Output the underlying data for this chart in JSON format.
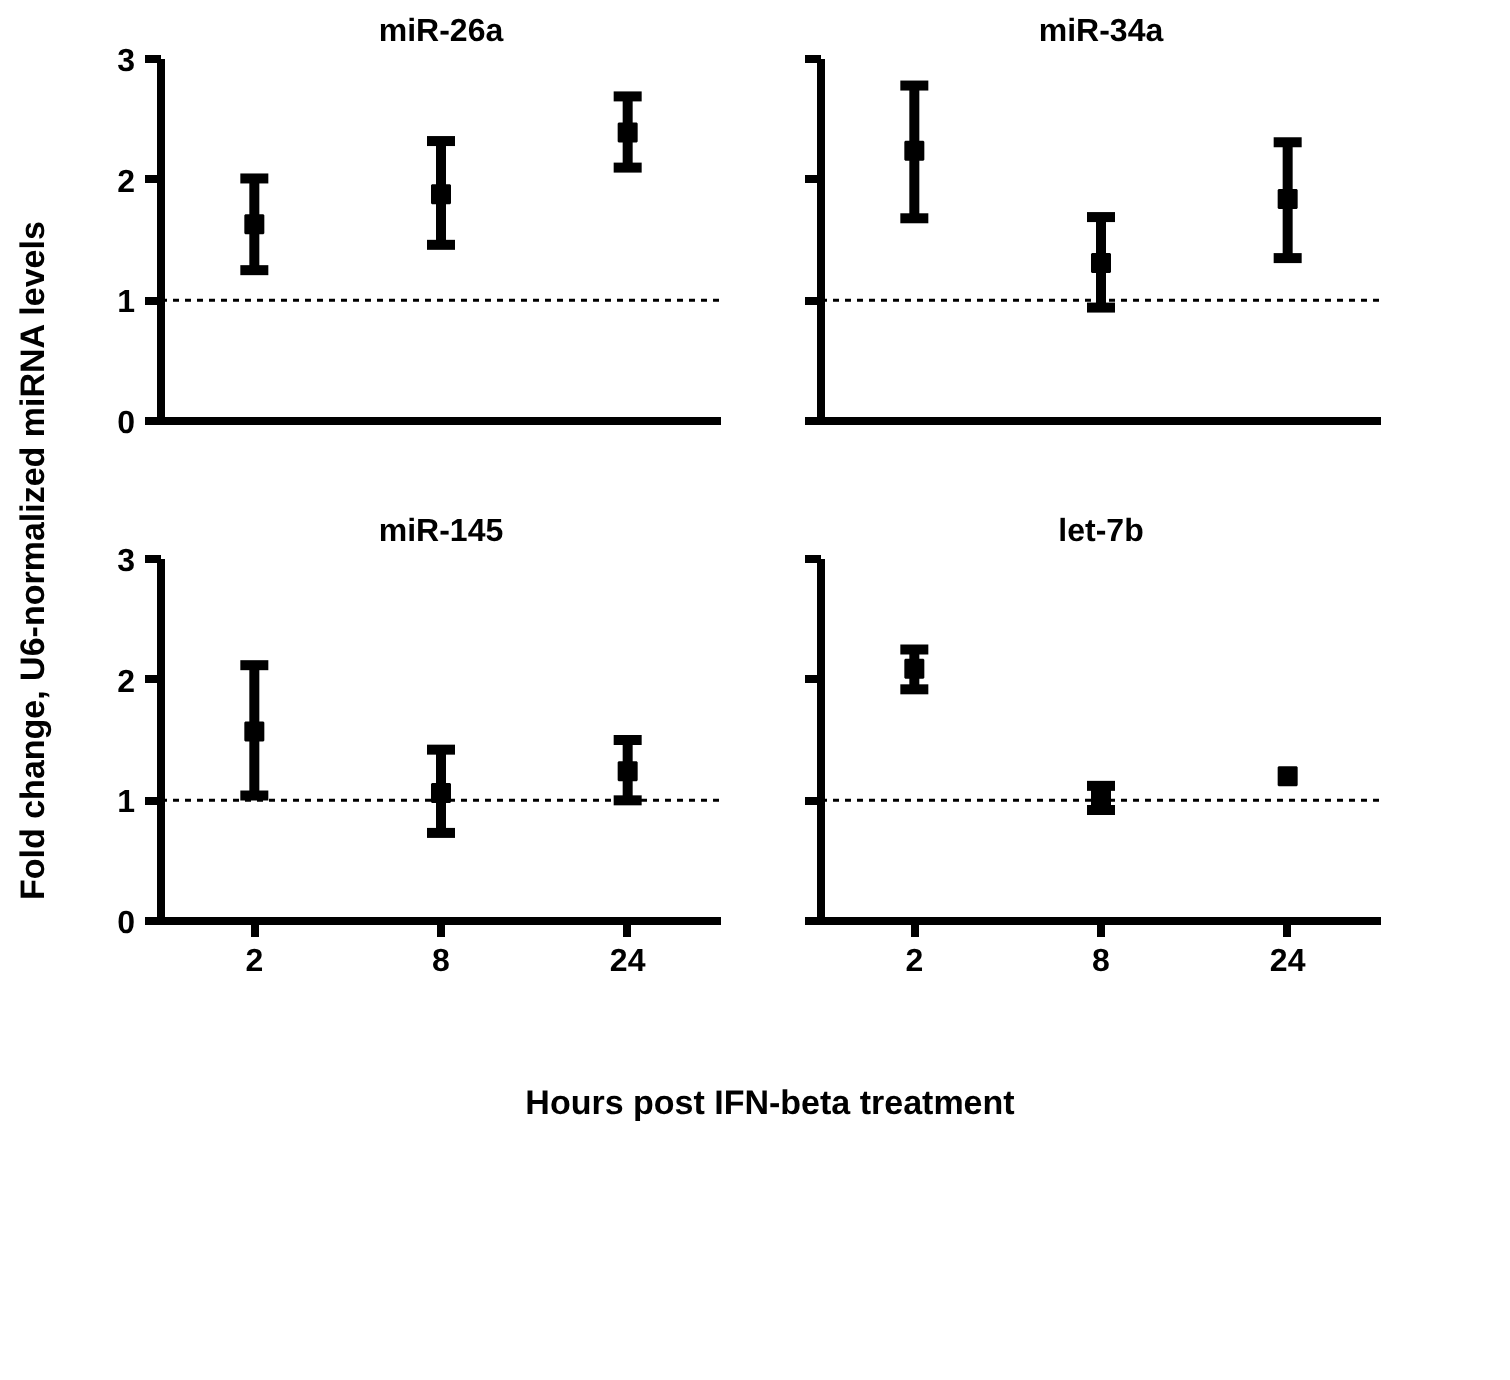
{
  "chart_data": [
    {
      "type": "scatter",
      "title": "miR-26a",
      "ylabel": "Fold change, U6-normalized miRNA levels",
      "categories": [
        "2",
        "8",
        "24"
      ],
      "ylim": [
        0,
        3
      ],
      "yticks": [
        0,
        1,
        2,
        3
      ],
      "marker": "square",
      "tick_labels": "y",
      "grid": false,
      "series": [
        {
          "color": "#000000",
          "values": [
            1.63,
            1.88,
            2.39
          ],
          "errors": [
            [
              1.25,
              2.01
            ],
            [
              1.46,
              2.32
            ],
            [
              2.1,
              2.69
            ]
          ]
        }
      ],
      "ref_lines": [
        {
          "axis": "y",
          "value": 1,
          "line_style": "dotted",
          "color": "#000000"
        }
      ]
    },
    {
      "type": "scatter",
      "title": "miR-34a",
      "categories": [
        "2",
        "8",
        "24"
      ],
      "ylim": [
        0,
        3
      ],
      "yticks": [
        0,
        1,
        2,
        3
      ],
      "marker": "square",
      "tick_labels": false,
      "grid": false,
      "series": [
        {
          "color": "#000000",
          "values": [
            2.24,
            1.31,
            1.84
          ],
          "errors": [
            [
              1.68,
              2.78
            ],
            [
              0.94,
              1.69
            ],
            [
              1.35,
              2.31
            ]
          ]
        }
      ],
      "ref_lines": [
        {
          "axis": "y",
          "value": 1,
          "line_style": "dotted",
          "color": "#000000"
        }
      ]
    },
    {
      "type": "scatter",
      "title": "miR-145",
      "xlabel": "Hours post IFN-beta treatment",
      "categories": [
        "2",
        "8",
        "24"
      ],
      "ylim": [
        0,
        3
      ],
      "yticks": [
        0,
        1,
        2,
        3
      ],
      "marker": "square",
      "grid": false,
      "series": [
        {
          "color": "#000000",
          "values": [
            1.57,
            1.06,
            1.24
          ],
          "errors": [
            [
              1.04,
              2.12
            ],
            [
              0.73,
              1.42
            ],
            [
              1.0,
              1.5
            ]
          ]
        }
      ],
      "ref_lines": [
        {
          "axis": "y",
          "value": 1,
          "line_style": "dotted",
          "color": "#000000"
        }
      ]
    },
    {
      "type": "scatter",
      "title": "let-7b",
      "categories": [
        "2",
        "8",
        "24"
      ],
      "ylim": [
        0,
        3
      ],
      "yticks": [
        0,
        1,
        2,
        3
      ],
      "marker": "square",
      "tick_labels": "x",
      "grid": false,
      "series": [
        {
          "color": "#000000",
          "values": [
            2.09,
            1.01,
            1.2
          ],
          "errors": [
            [
              1.92,
              2.25
            ],
            [
              0.92,
              1.12
            ],
            null
          ]
        }
      ],
      "ref_lines": [
        {
          "axis": "y",
          "value": 1,
          "line_style": "dotted",
          "color": "#000000"
        }
      ]
    }
  ]
}
